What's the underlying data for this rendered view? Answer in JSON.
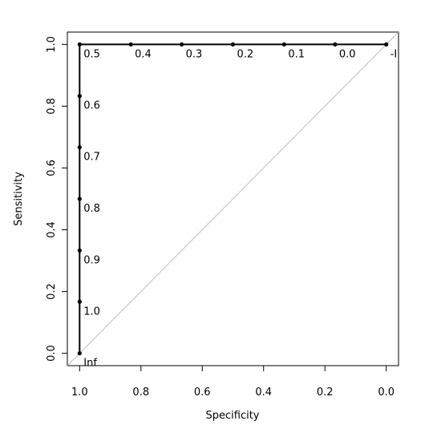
{
  "chart_data": {
    "type": "line",
    "xlabel": "Specificity",
    "ylabel": "Sensitivity",
    "x": [
      1,
      1,
      1,
      1,
      1,
      1,
      1,
      0.833,
      0.667,
      0.5,
      0.333,
      0.167,
      0
    ],
    "values": [
      0,
      0.167,
      0.333,
      0.5,
      0.667,
      0.833,
      1,
      1,
      1,
      1,
      1,
      1,
      1
    ],
    "thresholds": [
      "Inf",
      "1.0",
      "0.9",
      "0.8",
      "0.7",
      "0.6",
      "0.5",
      "0.4",
      "0.3",
      "0.2",
      "0.1",
      "0.0",
      "-I"
    ],
    "color": "#000000",
    "diagonal_color": "#bebebe",
    "xlim": [
      1.04,
      -0.04
    ],
    "ylim": [
      -0.04,
      1.04
    ],
    "xticks": [
      {
        "value": 1,
        "label": "1.0"
      },
      0.8,
      0.6,
      0.4,
      0.2,
      {
        "value": 0,
        "label": "0.0"
      }
    ],
    "yticks": [
      {
        "value": 0,
        "label": "0.0"
      },
      0.2,
      0.4,
      0.6,
      0.8,
      {
        "value": 1,
        "label": "1.0"
      }
    ]
  }
}
